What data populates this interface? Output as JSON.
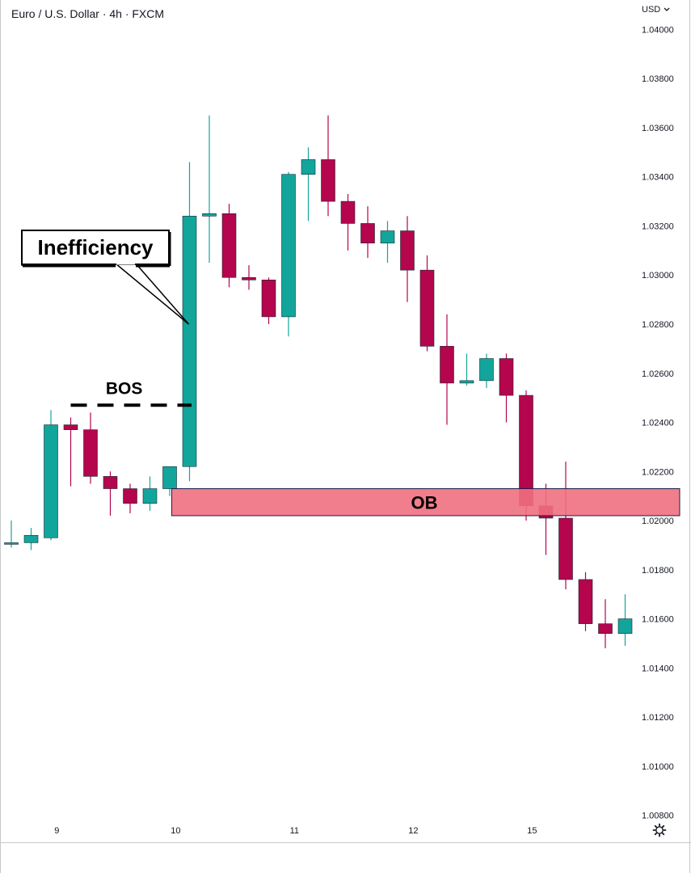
{
  "header": {
    "symbol": "Euro",
    "name": "U.S. Dollar",
    "interval": "4h",
    "source": "FXCM",
    "title_text": "Euro / U.S. Dollar · 4h · FXCM"
  },
  "currency_menu": {
    "label": "USD",
    "icon": "chevron-down-icon"
  },
  "settings": {
    "icon": "gear-icon"
  },
  "colors": {
    "bull": "#12a59c",
    "bear": "#b4054d",
    "ob_fill": "#f07080",
    "ob_border": "#1c1c4c",
    "annotation": "#000000"
  },
  "chart_data": {
    "type": "candlestick",
    "y_range": [
      1.0069,
      1.0412
    ],
    "y_ticks": [
      "1.04000",
      "1.03800",
      "1.03600",
      "1.03400",
      "1.03200",
      "1.03000",
      "1.02800",
      "1.02600",
      "1.02400",
      "1.02200",
      "1.02000",
      "1.01800",
      "1.01600",
      "1.01400",
      "1.01200",
      "1.01000",
      "1.00800"
    ],
    "x_ticks": [
      {
        "label": "9",
        "index": 2.3
      },
      {
        "label": "10",
        "index": 8.3
      },
      {
        "label": "11",
        "index": 14.3
      },
      {
        "label": "12",
        "index": 20.3
      },
      {
        "label": "15",
        "index": 26.3
      }
    ],
    "candles": [
      {
        "o": 1.0191,
        "h": 1.02,
        "l": 1.0189,
        "c": 1.0191
      },
      {
        "o": 1.0191,
        "h": 1.0197,
        "l": 1.0188,
        "c": 1.0194
      },
      {
        "o": 1.0193,
        "h": 1.0245,
        "l": 1.0192,
        "c": 1.0239
      },
      {
        "o": 1.0239,
        "h": 1.0242,
        "l": 1.0214,
        "c": 1.0237
      },
      {
        "o": 1.0237,
        "h": 1.0244,
        "l": 1.0215,
        "c": 1.0218
      },
      {
        "o": 1.0218,
        "h": 1.022,
        "l": 1.0202,
        "c": 1.0213
      },
      {
        "o": 1.0213,
        "h": 1.0215,
        "l": 1.0203,
        "c": 1.0207
      },
      {
        "o": 1.0207,
        "h": 1.0218,
        "l": 1.0204,
        "c": 1.0213
      },
      {
        "o": 1.0213,
        "h": 1.0219,
        "l": 1.021,
        "c": 1.0222
      },
      {
        "o": 1.0222,
        "h": 1.0346,
        "l": 1.0216,
        "c": 1.0324
      },
      {
        "o": 1.0324,
        "h": 1.0365,
        "l": 1.0305,
        "c": 1.0325
      },
      {
        "o": 1.0325,
        "h": 1.0329,
        "l": 1.0295,
        "c": 1.0299
      },
      {
        "o": 1.0299,
        "h": 1.0304,
        "l": 1.0294,
        "c": 1.0298
      },
      {
        "o": 1.0298,
        "h": 1.0299,
        "l": 1.028,
        "c": 1.0283
      },
      {
        "o": 1.0283,
        "h": 1.0342,
        "l": 1.0275,
        "c": 1.0341
      },
      {
        "o": 1.0341,
        "h": 1.0352,
        "l": 1.0322,
        "c": 1.0347
      },
      {
        "o": 1.0347,
        "h": 1.0365,
        "l": 1.0324,
        "c": 1.033
      },
      {
        "o": 1.033,
        "h": 1.0333,
        "l": 1.031,
        "c": 1.0321
      },
      {
        "o": 1.0321,
        "h": 1.0328,
        "l": 1.0307,
        "c": 1.0313
      },
      {
        "o": 1.0313,
        "h": 1.0322,
        "l": 1.0305,
        "c": 1.0318
      },
      {
        "o": 1.0318,
        "h": 1.0324,
        "l": 1.0289,
        "c": 1.0302
      },
      {
        "o": 1.0302,
        "h": 1.0308,
        "l": 1.0269,
        "c": 1.0271
      },
      {
        "o": 1.0271,
        "h": 1.0284,
        "l": 1.0239,
        "c": 1.0256
      },
      {
        "o": 1.0256,
        "h": 1.0268,
        "l": 1.0255,
        "c": 1.0257
      },
      {
        "o": 1.0257,
        "h": 1.0268,
        "l": 1.0254,
        "c": 1.0266
      },
      {
        "o": 1.0266,
        "h": 1.0268,
        "l": 1.024,
        "c": 1.0251
      },
      {
        "o": 1.0251,
        "h": 1.0253,
        "l": 1.02,
        "c": 1.0206
      },
      {
        "o": 1.0206,
        "h": 1.0215,
        "l": 1.0186,
        "c": 1.0201
      },
      {
        "o": 1.0201,
        "h": 1.0224,
        "l": 1.0172,
        "c": 1.0176
      },
      {
        "o": 1.0176,
        "h": 1.0179,
        "l": 1.0155,
        "c": 1.0158
      },
      {
        "o": 1.0158,
        "h": 1.0168,
        "l": 1.0148,
        "c": 1.0154
      },
      {
        "o": 1.0154,
        "h": 1.017,
        "l": 1.0149,
        "c": 1.016
      }
    ],
    "annotations": {
      "inefficiency": {
        "label": "Inefficiency"
      },
      "bos": {
        "label": "BOS",
        "price": 1.0247
      },
      "ob": {
        "label": "OB",
        "top": 1.0213,
        "bottom": 1.0202
      }
    }
  }
}
